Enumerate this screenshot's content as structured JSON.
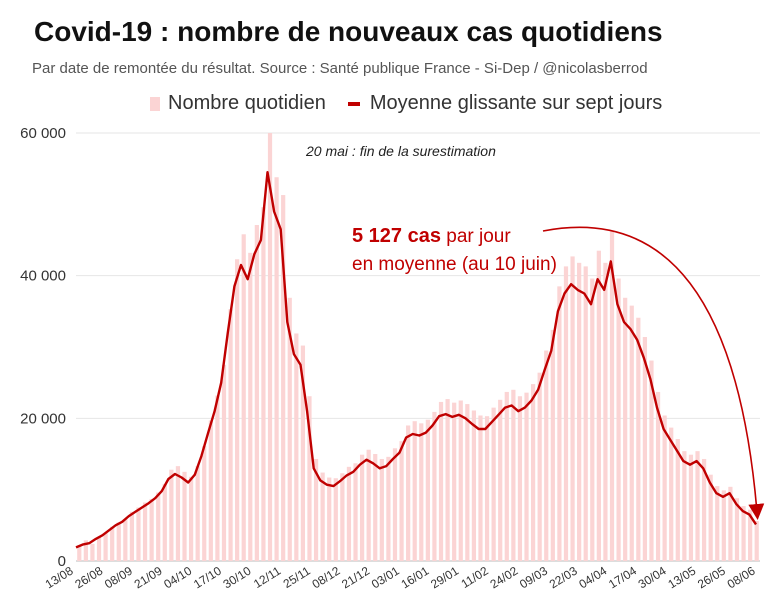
{
  "header": {
    "title": "Covid-19 : nombre de nouveaux cas quotidiens",
    "subtitle": "Par date de remontée du résultat. Source : Santé publique France - Si-Dep / @nicolasberrod"
  },
  "legend": {
    "bars_label": "Nombre quotidien",
    "line_label": "Moyenne glissante sur sept jours"
  },
  "annotations": {
    "note": "20 mai : fin de la surestimation",
    "highlight_bold": "5 127 cas",
    "highlight_rest": " par jour",
    "highlight_line2": "en moyenne (au 10 juin)"
  },
  "colors": {
    "bar": "#fbd4d4",
    "line": "#c00000",
    "text_red": "#c00000",
    "grid": "#e6e6e6"
  },
  "chart_data": {
    "type": "bar",
    "title": "Covid-19 : nombre de nouveaux cas quotidiens",
    "xlabel": "",
    "ylabel": "",
    "ylim": [
      0,
      60000
    ],
    "y_ticks": [
      0,
      20000,
      40000,
      60000
    ],
    "y_tick_labels": [
      "0",
      "20 000",
      "40 000",
      "60 000"
    ],
    "x_tick_labels": [
      "13/08",
      "26/08",
      "08/09",
      "21/09",
      "04/10",
      "17/10",
      "30/10",
      "12/11",
      "25/11",
      "08/12",
      "21/12",
      "03/01",
      "16/01",
      "29/01",
      "11/02",
      "24/02",
      "09/03",
      "22/03",
      "04/04",
      "17/04",
      "30/04",
      "13/05",
      "26/05",
      "08/06"
    ],
    "grid": true,
    "legend_position": "top",
    "series": [
      {
        "name": "Moyenne glissante sur sept jours",
        "type": "line",
        "values": [
          1900,
          2300,
          2500,
          3100,
          3600,
          4300,
          5000,
          5500,
          6300,
          6900,
          7500,
          8100,
          8800,
          9800,
          11500,
          12200,
          11700,
          11000,
          12100,
          14700,
          17900,
          21000,
          25000,
          32000,
          38500,
          41500,
          39500,
          43000,
          45000,
          54500,
          49000,
          46500,
          33500,
          29000,
          27500,
          21000,
          13000,
          11300,
          10700,
          10500,
          11200,
          12000,
          12500,
          13500,
          14200,
          13700,
          13000,
          13300,
          14300,
          15200,
          17300,
          17800,
          17600,
          18000,
          19000,
          20300,
          20600,
          20200,
          20500,
          20000,
          19200,
          18500,
          18500,
          19500,
          20500,
          21500,
          21800,
          21000,
          21500,
          22500,
          24000,
          26800,
          29500,
          35000,
          37500,
          38800,
          38000,
          37500,
          36000,
          39500,
          38000,
          42000,
          36000,
          33500,
          32500,
          31000,
          28500,
          25500,
          21500,
          18500,
          17000,
          15500,
          14000,
          13500,
          14000,
          13000,
          11000,
          9500,
          9000,
          9500,
          8000,
          7000,
          6500,
          5127
        ]
      },
      {
        "name": "Nombre quotidien",
        "type": "bar",
        "values": [
          2100,
          2900,
          2400,
          3300,
          3900,
          4800,
          5400,
          5900,
          6900,
          7500,
          8200,
          8700,
          9600,
          10800,
          12800,
          13300,
          12500,
          11800,
          13300,
          16100,
          19700,
          23200,
          27500,
          35300,
          42300,
          45800,
          43200,
          47100,
          49600,
          60000,
          53800,
          51300,
          36900,
          31900,
          30200,
          23100,
          14300,
          12400,
          11700,
          11600,
          12300,
          13200,
          13700,
          14900,
          15600,
          15000,
          14300,
          14600,
          15800,
          16800,
          19000,
          19600,
          19300,
          19800,
          20900,
          22300,
          22700,
          22200,
          22500,
          22000,
          21100,
          20400,
          20300,
          21500,
          22600,
          23700,
          24000,
          23100,
          23600,
          24800,
          26400,
          29500,
          32400,
          38500,
          41300,
          42700,
          41800,
          41300,
          39600,
          43500,
          41800,
          46200,
          39600,
          36900,
          35800,
          34100,
          31400,
          28100,
          23700,
          20400,
          18700,
          17100,
          15400,
          14900,
          15400,
          14300,
          12100,
          10500,
          9900,
          10400,
          8800,
          7700,
          7200,
          5600
        ]
      }
    ]
  }
}
